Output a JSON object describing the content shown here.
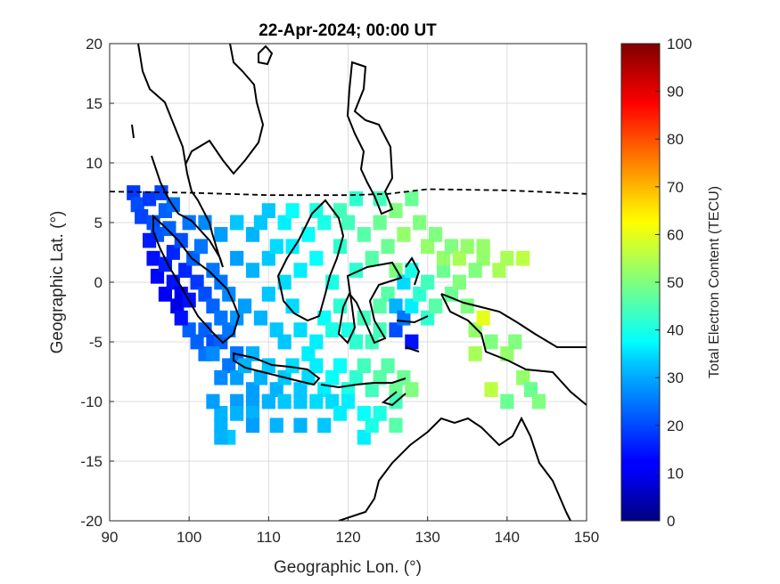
{
  "chart_data": {
    "type": "heatmap",
    "title": "22-Apr-2024; 00:00 UT",
    "xlabel": "Geographic Lon. (°)",
    "ylabel": "Geographic Lat. (°)",
    "colorbar_label": "Total Electron Content (TECU)",
    "xlim": [
      90,
      150
    ],
    "ylim": [
      -20,
      20
    ],
    "clim": [
      0,
      100
    ],
    "xticks": [
      "90",
      "100",
      "110",
      "120",
      "130",
      "140",
      "150"
    ],
    "yticks": [
      "20",
      "15",
      "10",
      "5",
      "0",
      "-5",
      "-10",
      "-15",
      "-20"
    ],
    "cticks": [
      "0",
      "10",
      "20",
      "30",
      "40",
      "50",
      "60",
      "70",
      "80",
      "90",
      "100"
    ],
    "grid": true,
    "colormap": "jet",
    "geomagnetic_equator": [
      [
        90,
        7.6
      ],
      [
        100,
        7.5
      ],
      [
        110,
        7.3
      ],
      [
        120,
        7.3
      ],
      [
        125,
        7.4
      ],
      [
        130,
        7.8
      ],
      [
        140,
        7.7
      ],
      [
        150,
        7.4
      ]
    ],
    "tec_cells": [
      [
        93,
        7.5,
        18
      ],
      [
        93.5,
        6.5,
        20
      ],
      [
        94,
        5.5,
        19
      ],
      [
        95,
        7,
        18
      ],
      [
        95.5,
        5,
        20
      ],
      [
        96,
        4,
        21
      ],
      [
        96.5,
        7.5,
        19
      ],
      [
        97,
        6,
        22
      ],
      [
        97.5,
        4.5,
        22
      ],
      [
        98,
        6.5,
        23
      ],
      [
        95,
        3.5,
        15
      ],
      [
        95.5,
        2,
        14
      ],
      [
        96,
        0.5,
        13
      ],
      [
        97,
        1.5,
        15
      ],
      [
        97,
        -1,
        12
      ],
      [
        98,
        0,
        14
      ],
      [
        98,
        2.5,
        16
      ],
      [
        98.5,
        -2,
        10
      ],
      [
        99,
        -1,
        11
      ],
      [
        99.5,
        1,
        16
      ],
      [
        99,
        3.5,
        20
      ],
      [
        100,
        5,
        24
      ],
      [
        100.5,
        2,
        22
      ],
      [
        101,
        0,
        18
      ],
      [
        100,
        -1.5,
        14
      ],
      [
        102,
        -1,
        20
      ],
      [
        101.5,
        3,
        24
      ],
      [
        103,
        1,
        24
      ],
      [
        103,
        -2,
        22
      ],
      [
        104,
        -3,
        24
      ],
      [
        104,
        0,
        24
      ],
      [
        105,
        -1,
        26
      ],
      [
        102,
        -4,
        22
      ],
      [
        103,
        -5,
        20
      ],
      [
        104,
        -5,
        22
      ],
      [
        105,
        -4,
        24
      ],
      [
        106,
        -3,
        27
      ],
      [
        106,
        -6,
        24
      ],
      [
        105,
        -7,
        24
      ],
      [
        102,
        -6,
        24
      ],
      [
        104,
        -8,
        26
      ],
      [
        106,
        -8,
        28
      ],
      [
        107,
        -7,
        30
      ],
      [
        108,
        -6,
        30
      ],
      [
        108,
        -9,
        28
      ],
      [
        109,
        -8,
        30
      ],
      [
        110,
        -7,
        32
      ],
      [
        111,
        -9,
        30
      ],
      [
        112,
        -8,
        32
      ],
      [
        113,
        -7,
        34
      ],
      [
        114,
        -9,
        32
      ],
      [
        115,
        -8,
        34
      ],
      [
        116,
        -7,
        36
      ],
      [
        117,
        -9,
        36
      ],
      [
        118,
        -8,
        38
      ],
      [
        119,
        -7,
        38
      ],
      [
        120,
        -9,
        40
      ],
      [
        121,
        -8,
        42
      ],
      [
        122,
        -7,
        44
      ],
      [
        123,
        -9,
        44
      ],
      [
        124,
        -8,
        46
      ],
      [
        125,
        -7,
        46
      ],
      [
        126,
        -9,
        48
      ],
      [
        127,
        -8,
        48
      ],
      [
        128,
        -9,
        50
      ],
      [
        110,
        -10,
        30
      ],
      [
        112,
        -10,
        32
      ],
      [
        114,
        -10,
        32
      ],
      [
        116,
        -10,
        34
      ],
      [
        118,
        -10,
        34
      ],
      [
        106,
        -10,
        28
      ],
      [
        108,
        -10,
        28
      ],
      [
        104,
        -11,
        30
      ],
      [
        103,
        -10,
        28
      ],
      [
        104,
        -12,
        30
      ],
      [
        106,
        -11,
        30
      ],
      [
        108,
        -11,
        30
      ],
      [
        120,
        -10,
        36
      ],
      [
        122,
        -11,
        38
      ],
      [
        124,
        -11,
        40
      ],
      [
        126,
        -10,
        44
      ],
      [
        122,
        -13,
        36
      ],
      [
        123,
        -12,
        40
      ],
      [
        100,
        -4,
        22
      ],
      [
        101,
        -5,
        22
      ],
      [
        103,
        -6,
        26
      ],
      [
        99,
        -3,
        14
      ],
      [
        106,
        2,
        28
      ],
      [
        108,
        1,
        30
      ],
      [
        110,
        -1,
        32
      ],
      [
        107,
        -2,
        28
      ],
      [
        109,
        -3,
        30
      ],
      [
        111,
        -4,
        32
      ],
      [
        112,
        -5,
        32
      ],
      [
        113,
        -2,
        34
      ],
      [
        114,
        -4,
        34
      ],
      [
        115,
        -6,
        36
      ],
      [
        116,
        -5,
        36
      ],
      [
        117,
        -3,
        38
      ],
      [
        112,
        0,
        34
      ],
      [
        110,
        2,
        32
      ],
      [
        108,
        4,
        30
      ],
      [
        106,
        5,
        30
      ],
      [
        109,
        5,
        32
      ],
      [
        111,
        3,
        34
      ],
      [
        113,
        3,
        36
      ],
      [
        112,
        5,
        36
      ],
      [
        114,
        1,
        36
      ],
      [
        115,
        4,
        38
      ],
      [
        116,
        2,
        38
      ],
      [
        117,
        5,
        40
      ],
      [
        118,
        0,
        40
      ],
      [
        119,
        3,
        42
      ],
      [
        120,
        5,
        44
      ],
      [
        121,
        1,
        42
      ],
      [
        122,
        4,
        46
      ],
      [
        123,
        2,
        46
      ],
      [
        124,
        5,
        48
      ],
      [
        125,
        3,
        48
      ],
      [
        126,
        1,
        50
      ],
      [
        118,
        -4,
        40
      ],
      [
        119,
        -2,
        42
      ],
      [
        120,
        -4,
        40
      ],
      [
        121,
        -5,
        42
      ],
      [
        122,
        -3,
        44
      ],
      [
        123,
        -5,
        44
      ],
      [
        124,
        -2,
        46
      ],
      [
        124,
        -4,
        44
      ],
      [
        125,
        -1,
        46
      ],
      [
        126,
        -2,
        30
      ],
      [
        126,
        -4,
        20
      ],
      [
        127,
        -3,
        24
      ],
      [
        128,
        -5,
        14
      ],
      [
        128,
        -2,
        36
      ],
      [
        127,
        0,
        34
      ],
      [
        128,
        1,
        40
      ],
      [
        129,
        -1,
        42
      ],
      [
        130,
        0,
        44
      ],
      [
        130,
        -3,
        42
      ],
      [
        131,
        -2,
        46
      ],
      [
        132,
        1,
        48
      ],
      [
        133,
        -1,
        48
      ],
      [
        134,
        0,
        50
      ],
      [
        135,
        -2,
        50
      ],
      [
        136,
        -4,
        52
      ],
      [
        137,
        -3,
        60
      ],
      [
        136,
        -6,
        54
      ],
      [
        137,
        2,
        52
      ],
      [
        138,
        -5,
        50
      ],
      [
        139,
        1,
        54
      ],
      [
        140,
        -6,
        52
      ],
      [
        141,
        -5,
        50
      ],
      [
        142,
        -8,
        52
      ],
      [
        143,
        -9,
        48
      ],
      [
        138,
        -9,
        56
      ],
      [
        140,
        -10,
        48
      ],
      [
        144,
        -10,
        50
      ],
      [
        126,
        6,
        50
      ],
      [
        127,
        4,
        52
      ],
      [
        128,
        7,
        48
      ],
      [
        129,
        5,
        50
      ],
      [
        130,
        3,
        52
      ],
      [
        131,
        4,
        50
      ],
      [
        132,
        2,
        52
      ],
      [
        133,
        3,
        50
      ],
      [
        134,
        2,
        54
      ],
      [
        135,
        3,
        52
      ],
      [
        136,
        1,
        50
      ],
      [
        137,
        3,
        52
      ],
      [
        140,
        2,
        54
      ],
      [
        142,
        2,
        56
      ],
      [
        119,
        6,
        44
      ],
      [
        121,
        7,
        42
      ],
      [
        124,
        7,
        44
      ],
      [
        116,
        6,
        40
      ],
      [
        113,
        6,
        38
      ],
      [
        110,
        6,
        32
      ],
      [
        106,
        5,
        32
      ],
      [
        104,
        4,
        28
      ],
      [
        102,
        5,
        26
      ],
      [
        111,
        -12,
        30
      ],
      [
        108,
        -12,
        28
      ],
      [
        126,
        -12,
        46
      ],
      [
        119,
        -11,
        36
      ],
      [
        114,
        -12,
        30
      ],
      [
        117,
        -12,
        32
      ],
      [
        105,
        -13,
        32
      ],
      [
        104,
        -13,
        30
      ]
    ]
  }
}
